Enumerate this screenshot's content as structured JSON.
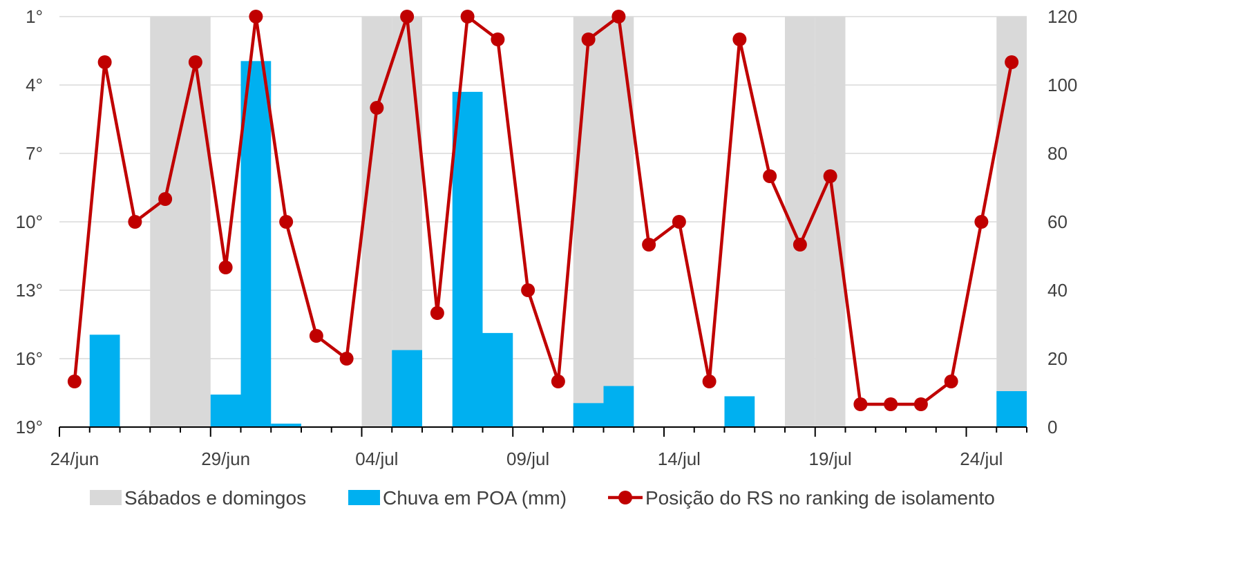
{
  "chart_data": {
    "type": "bar",
    "dates": [
      "24/jun",
      "25/jun",
      "26/jun",
      "27/jun",
      "28/jun",
      "29/jun",
      "30/jun",
      "01/jul",
      "02/jul",
      "03/jul",
      "04/jul",
      "05/jul",
      "06/jul",
      "07/jul",
      "08/jul",
      "09/jul",
      "10/jul",
      "11/jul",
      "12/jul",
      "13/jul",
      "14/jul",
      "15/jul",
      "16/jul",
      "17/jul",
      "18/jul",
      "19/jul",
      "20/jul",
      "21/jul",
      "22/jul",
      "23/jul",
      "24/jul",
      "25/jul"
    ],
    "x_tick_labels": [
      "24/jun",
      "29/jun",
      "04/jul",
      "09/jul",
      "14/jul",
      "19/jul",
      "24/jul"
    ],
    "y_left_ticks": [
      "1°",
      "4°",
      "7°",
      "10°",
      "13°",
      "16°",
      "19°"
    ],
    "y_left_range": [
      1,
      19
    ],
    "y_left_reversed": true,
    "y_right_ticks": [
      "120",
      "100",
      "80",
      "60",
      "40",
      "20",
      "0"
    ],
    "y_right_range": [
      0,
      120
    ],
    "weekends": [
      "27/jun",
      "28/jun",
      "04/jul",
      "05/jul",
      "11/jul",
      "12/jul",
      "18/jul",
      "19/jul",
      "25/jul"
    ],
    "series": [
      {
        "name": "Sábados e domingos",
        "kind": "shaded-band",
        "color": "#d9d9d9"
      },
      {
        "name": "Chuva em POA (mm)",
        "kind": "bar",
        "axis": "right",
        "color": "#00b0f0",
        "values": [
          0,
          27,
          0,
          0,
          0,
          9.5,
          107,
          1,
          0,
          0,
          0,
          22.5,
          0,
          98,
          27.5,
          0,
          0,
          7,
          12,
          0,
          0,
          0,
          9,
          0,
          0,
          0,
          0,
          0,
          0,
          0,
          0,
          10.5
        ]
      },
      {
        "name": "Posição do RS no ranking de isolamento",
        "kind": "line",
        "axis": "left",
        "color": "#c00000",
        "values": [
          17,
          3,
          10,
          9,
          3,
          12,
          1,
          10,
          15,
          16,
          5,
          1,
          14,
          1,
          2,
          13,
          17,
          2,
          1,
          11,
          10,
          17,
          2,
          8,
          11,
          8,
          18,
          18,
          18,
          17,
          10,
          3
        ]
      }
    ],
    "legend": [
      "Sábados e domingos",
      "Chuva em POA (mm)",
      "Posição do RS no ranking de isolamento"
    ],
    "legend_position": "bottom",
    "grid": true
  }
}
